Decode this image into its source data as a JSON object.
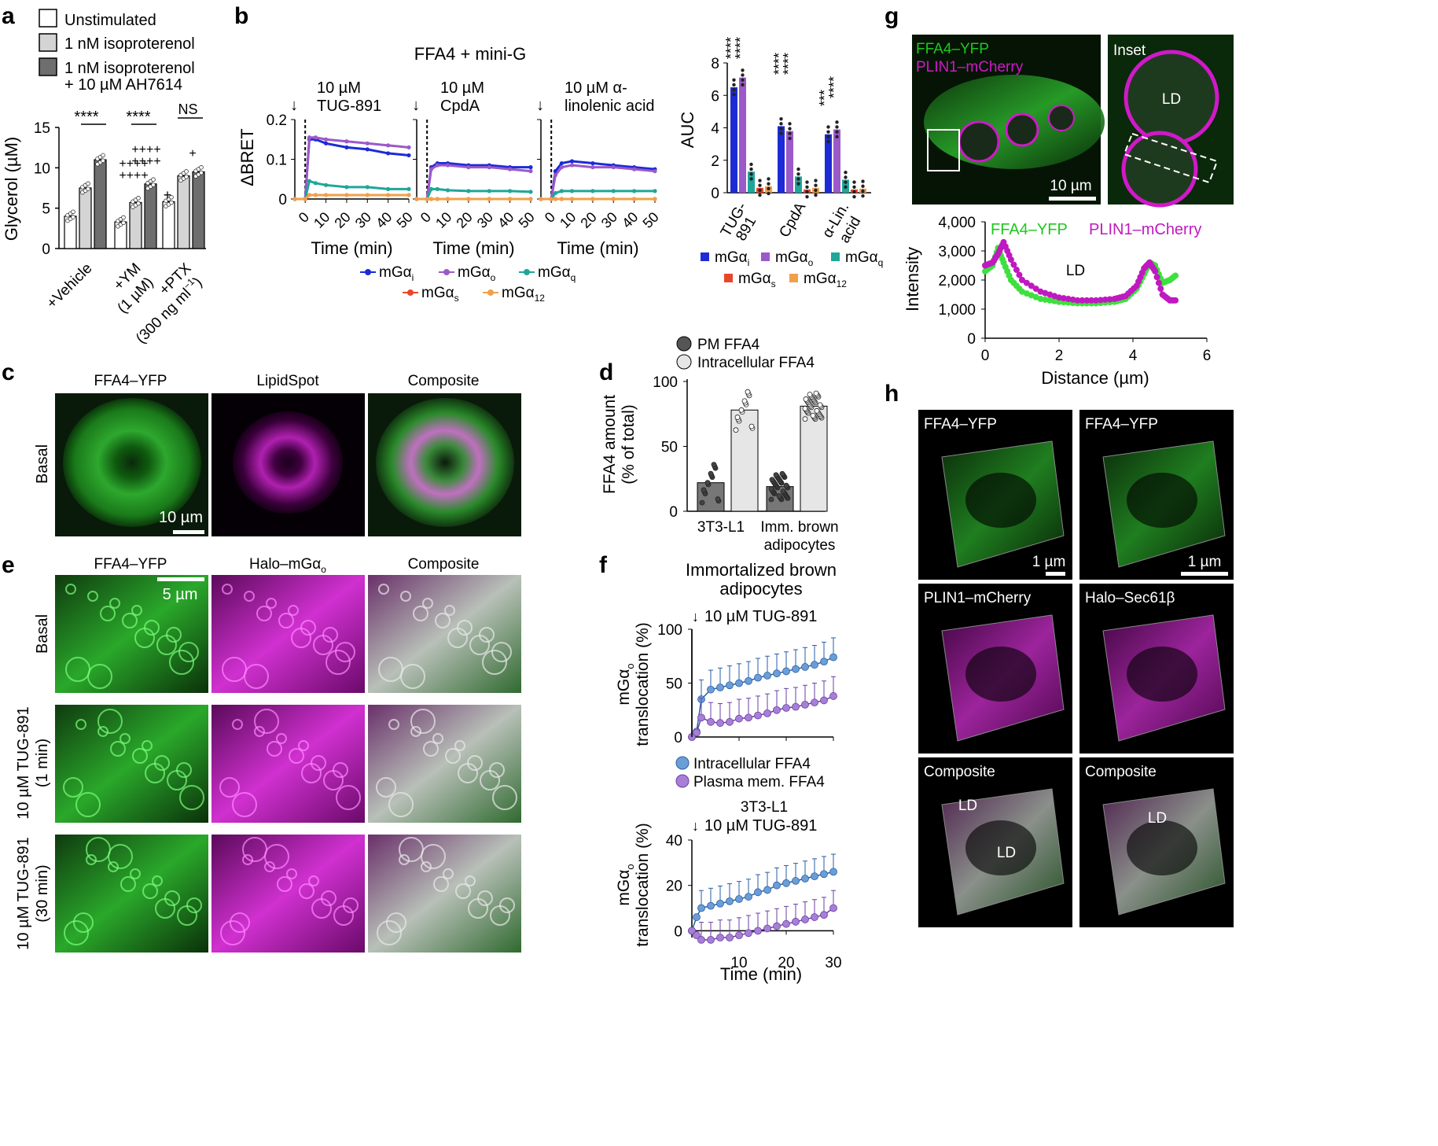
{
  "colors": {
    "unstim": "#ffffff",
    "iso": "#d4d4d4",
    "iso_ah": "#6e6e6e",
    "mGai": "#1c2bd6",
    "mGao": "#9b59c9",
    "mGaq": "#1fa69a",
    "mGas": "#e8472a",
    "mGa12": "#f0a04a",
    "green": "#1ec81e",
    "magenta": "#d019c8",
    "blue_fill": "#6b9ed6",
    "purple_fill": "#a77fd6"
  },
  "icons": [
    "arrow-down-icon",
    "scale-bar"
  ],
  "panels": {
    "a": {
      "letter": "a",
      "legend": [
        "Unstimulated",
        "1 nM isoproterenol",
        "1 nM isoproterenol",
        "+ 10 µM AH7614"
      ],
      "ylabel": "Glycerol (µM)",
      "yticks": [
        "0",
        "5",
        "10",
        "15"
      ],
      "groups": [
        "+Vehicle",
        "+YM",
        "(1 µM)",
        "+PTX",
        "(300 ng ml",
        "−1",
        ")"
      ],
      "sig": [
        "****",
        "****",
        "NS"
      ],
      "plus_marks": [
        "+",
        "++++",
        "++++",
        "++++",
        "++++",
        "+"
      ]
    },
    "b": {
      "letter": "b",
      "title": "FFA4 + mini-G",
      "stim": [
        "10 µM",
        "TUG-891",
        "10 µM",
        "CpdA",
        "10 µM α-",
        "linolenic acid"
      ],
      "ylabel": "ΔBRET",
      "yticks": [
        "0",
        "0.1",
        "0.2"
      ],
      "xticks": [
        "0",
        "10",
        "20",
        "30",
        "40",
        "50"
      ],
      "xlabel": "Time (min)",
      "legend": [
        "mGα",
        "i",
        "mGα",
        "o",
        "mGα",
        "q",
        "mGα",
        "s",
        "mGα",
        "12"
      ],
      "auc_ylabel": "AUC",
      "auc_yticks": [
        "0",
        "2",
        "4",
        "6",
        "8"
      ],
      "auc_groups": [
        "TUG-",
        "891",
        "CpdA",
        "α-Lin.",
        "acid"
      ],
      "auc_sig": [
        "****",
        "****",
        "****",
        "****",
        "***",
        "****"
      ]
    },
    "c": {
      "letter": "c",
      "cols": [
        "FFA4–YFP",
        "LipidSpot",
        "Composite"
      ],
      "row": "Basal",
      "scale": "10 µm"
    },
    "d": {
      "letter": "d",
      "legend": [
        "PM FFA4",
        "Intracellular FFA4"
      ],
      "ylabel": "FFA4 amount",
      "ylabel2": "(% of total)",
      "yticks": [
        "0",
        "50",
        "100"
      ],
      "groups": [
        "3T3-L1",
        "Imm. brown",
        "adipocytes"
      ]
    },
    "e": {
      "letter": "e",
      "cols": [
        "FFA4–YFP",
        "Halo–mGα",
        "o",
        "Composite"
      ],
      "rows": [
        "Basal",
        "10 µM TUG-891",
        "(1 min)",
        "10 µM TUG-891",
        "(30 min)"
      ],
      "scale": "5 µm"
    },
    "f": {
      "letter": "f",
      "title1": "Immortalized brown",
      "title1b": "adipocytes",
      "stim": "10 µM TUG-891",
      "ylabel": "mGα",
      "ylabel_sub": "o",
      "ylabel2": "translocation (%)",
      "yticks_top": [
        "0",
        "50",
        "100"
      ],
      "legend": [
        "Intracellular FFA4",
        "Plasma mem. FFA4"
      ],
      "title2": "3T3-L1",
      "yticks_bot": [
        "0",
        "20",
        "40"
      ],
      "xticks": [
        "10",
        "20",
        "30"
      ],
      "xlabel": "Time (min)"
    },
    "g": {
      "letter": "g",
      "labels": [
        "FFA4–YFP",
        "PLIN1–mCherry",
        "Inset",
        "LD",
        "10 µm"
      ],
      "ylabel": "Intensity",
      "yticks": [
        "0",
        "1,000",
        "2,000",
        "3,000",
        "4,000"
      ],
      "xticks": [
        "0",
        "2",
        "4",
        "6"
      ],
      "xlabel": "Distance (µm)",
      "legend": [
        "FFA4–YFP",
        "PLIN1–mCherry"
      ],
      "ld": "LD"
    },
    "h": {
      "letter": "h",
      "labels": [
        "FFA4–YFP",
        "FFA4–YFP",
        "PLIN1–mCherry",
        "Halo–Sec61β",
        "Composite",
        "Composite"
      ],
      "ld": [
        "LD",
        "LD",
        "LD"
      ],
      "scale": [
        "1 µm",
        "1 µm"
      ]
    }
  },
  "chart_data": [
    {
      "type": "bar",
      "panel": "a",
      "ylabel": "Glycerol (µM)",
      "ylim": [
        0,
        15
      ],
      "categories": [
        "+Vehicle",
        "+YM (1 µM)",
        "+PTX (300 ng ml−1)"
      ],
      "series": [
        {
          "name": "Unstimulated",
          "values": [
            4.0,
            3.3,
            5.8
          ]
        },
        {
          "name": "1 nM isoproterenol",
          "values": [
            7.5,
            5.7,
            9.0
          ]
        },
        {
          "name": "1 nM isoproterenol + 10 µM AH7614",
          "values": [
            11.0,
            8.0,
            9.5
          ]
        }
      ]
    },
    {
      "type": "line",
      "panel": "b",
      "title": "FFA4 + mini-G",
      "ylabel": "ΔBRET",
      "xlabel": "Time (min)",
      "ylim": [
        0,
        0.2
      ],
      "xlim": [
        -5,
        50
      ],
      "subplots": [
        {
          "stim": "10 µM TUG-891",
          "x": [
            -5,
            0,
            2,
            5,
            10,
            20,
            30,
            40,
            50
          ],
          "series": [
            {
              "name": "mGαi",
              "values": [
                0,
                0,
                0.15,
                0.15,
                0.14,
                0.13,
                0.125,
                0.115,
                0.11
              ]
            },
            {
              "name": "mGαo",
              "values": [
                0,
                0,
                0.155,
                0.155,
                0.15,
                0.145,
                0.14,
                0.135,
                0.13
              ]
            },
            {
              "name": "mGαq",
              "values": [
                0,
                0,
                0.045,
                0.04,
                0.035,
                0.03,
                0.03,
                0.025,
                0.025
              ]
            },
            {
              "name": "mGαs",
              "values": [
                0,
                0,
                0.01,
                0.01,
                0.01,
                0.01,
                0.01,
                0.01,
                0.01
              ]
            },
            {
              "name": "mGα12",
              "values": [
                0,
                0,
                0.01,
                0.01,
                0.01,
                0.01,
                0.01,
                0.01,
                0.01
              ]
            }
          ]
        },
        {
          "stim": "10 µM CpdA",
          "x": [
            -5,
            0,
            2,
            5,
            10,
            20,
            30,
            40,
            50
          ],
          "series": [
            {
              "name": "mGαi",
              "values": [
                0,
                0,
                0.08,
                0.09,
                0.09,
                0.085,
                0.085,
                0.08,
                0.08
              ]
            },
            {
              "name": "mGαo",
              "values": [
                0,
                0,
                0.075,
                0.085,
                0.085,
                0.08,
                0.08,
                0.075,
                0.07
              ]
            },
            {
              "name": "mGαq",
              "values": [
                0,
                0,
                0.025,
                0.025,
                0.022,
                0.02,
                0.02,
                0.02,
                0.018
              ]
            },
            {
              "name": "mGαs",
              "values": [
                0,
                0,
                0.0,
                0.0,
                0.0,
                0.0,
                0.0,
                0.0,
                0.0
              ]
            },
            {
              "name": "mGα12",
              "values": [
                0,
                0,
                0.0,
                0.0,
                0.0,
                0.0,
                0.0,
                0.0,
                0.0
              ]
            }
          ]
        },
        {
          "stim": "10 µM α-linolenic acid",
          "x": [
            -5,
            0,
            2,
            5,
            10,
            20,
            30,
            40,
            50
          ],
          "series": [
            {
              "name": "mGαi",
              "values": [
                0,
                0,
                0.07,
                0.09,
                0.095,
                0.09,
                0.085,
                0.08,
                0.075
              ]
            },
            {
              "name": "mGαo",
              "values": [
                0,
                0,
                0.06,
                0.08,
                0.085,
                0.08,
                0.08,
                0.075,
                0.07
              ]
            },
            {
              "name": "mGαq",
              "values": [
                0,
                0,
                0.015,
                0.02,
                0.02,
                0.02,
                0.02,
                0.02,
                0.02
              ]
            },
            {
              "name": "mGαs",
              "values": [
                0,
                0,
                0.0,
                0.0,
                0.0,
                0.0,
                0.0,
                0.0,
                0.0
              ]
            },
            {
              "name": "mGα12",
              "values": [
                0,
                0,
                0.0,
                0.0,
                0.0,
                0.0,
                0.0,
                0.0,
                0.0
              ]
            }
          ]
        }
      ]
    },
    {
      "type": "bar",
      "panel": "b-AUC",
      "ylabel": "AUC",
      "ylim": [
        0,
        8
      ],
      "categories": [
        "TUG-891",
        "CpdA",
        "α-Lin. acid"
      ],
      "series": [
        {
          "name": "mGαi",
          "values": [
            6.5,
            4.1,
            3.6
          ]
        },
        {
          "name": "mGαo",
          "values": [
            7.1,
            3.8,
            3.9
          ]
        },
        {
          "name": "mGαq",
          "values": [
            1.3,
            1.0,
            0.8
          ]
        },
        {
          "name": "mGαs",
          "values": [
            0.3,
            0.2,
            0.2
          ]
        },
        {
          "name": "mGα12",
          "values": [
            0.4,
            0.3,
            0.25
          ]
        }
      ]
    },
    {
      "type": "bar",
      "panel": "d",
      "ylim": [
        0,
        100
      ],
      "categories": [
        "3T3-L1",
        "Imm. brown adipocytes"
      ],
      "series": [
        {
          "name": "PM FFA4",
          "values": [
            22,
            19
          ]
        },
        {
          "name": "Intracellular FFA4",
          "values": [
            78,
            81
          ]
        }
      ]
    },
    {
      "type": "line",
      "panel": "f-top",
      "title": "Immortalized brown adipocytes",
      "ylim": [
        0,
        100
      ],
      "xlim": [
        0,
        30
      ],
      "x": [
        0,
        1,
        2,
        4,
        6,
        8,
        10,
        12,
        14,
        16,
        18,
        20,
        22,
        24,
        26,
        28,
        30
      ],
      "series": [
        {
          "name": "Intracellular FFA4",
          "values": [
            0,
            5,
            35,
            44,
            46,
            48,
            50,
            52,
            55,
            57,
            59,
            61,
            63,
            65,
            67,
            70,
            74
          ]
        },
        {
          "name": "Plasma mem. FFA4",
          "values": [
            0,
            4,
            18,
            14,
            13,
            14,
            17,
            18,
            20,
            22,
            25,
            27,
            28,
            30,
            32,
            34,
            38
          ]
        }
      ]
    },
    {
      "type": "line",
      "panel": "f-bottom",
      "title": "3T3-L1",
      "xlabel": "Time (min)",
      "ylim": [
        -3,
        40
      ],
      "xlim": [
        0,
        30
      ],
      "x": [
        0,
        1,
        2,
        4,
        6,
        8,
        10,
        12,
        14,
        16,
        18,
        20,
        22,
        24,
        26,
        28,
        30
      ],
      "series": [
        {
          "name": "Intracellular FFA4",
          "values": [
            0,
            6,
            10,
            11,
            12,
            13,
            14,
            15,
            17,
            18,
            20,
            21,
            22,
            23,
            24,
            25,
            26
          ]
        },
        {
          "name": "Plasma mem. FFA4",
          "values": [
            0,
            -2,
            -4,
            -4,
            -3,
            -3,
            -2,
            -1,
            0,
            1,
            2,
            3,
            4,
            5,
            6,
            7,
            10
          ]
        }
      ]
    },
    {
      "type": "line",
      "panel": "g",
      "ylabel": "Intensity",
      "xlabel": "Distance (µm)",
      "ylim": [
        0,
        4000
      ],
      "xlim": [
        0,
        6
      ],
      "x": [
        0,
        0.2,
        0.35,
        0.5,
        0.7,
        1.0,
        1.5,
        2.0,
        2.5,
        3.0,
        3.5,
        3.8,
        4.1,
        4.3,
        4.45,
        4.6,
        4.8,
        5.0,
        5.2
      ],
      "series": [
        {
          "name": "FFA4–YFP",
          "values": [
            2300,
            2500,
            3100,
            2600,
            2000,
            1600,
            1350,
            1250,
            1200,
            1200,
            1250,
            1350,
            1700,
            2200,
            2600,
            2500,
            1900,
            2000,
            2200
          ]
        },
        {
          "name": "PLIN1–mCherry",
          "values": [
            2500,
            2600,
            2900,
            3300,
            2700,
            2000,
            1600,
            1400,
            1300,
            1300,
            1350,
            1450,
            1800,
            2400,
            2600,
            2300,
            1500,
            1300,
            1300
          ]
        }
      ]
    }
  ]
}
